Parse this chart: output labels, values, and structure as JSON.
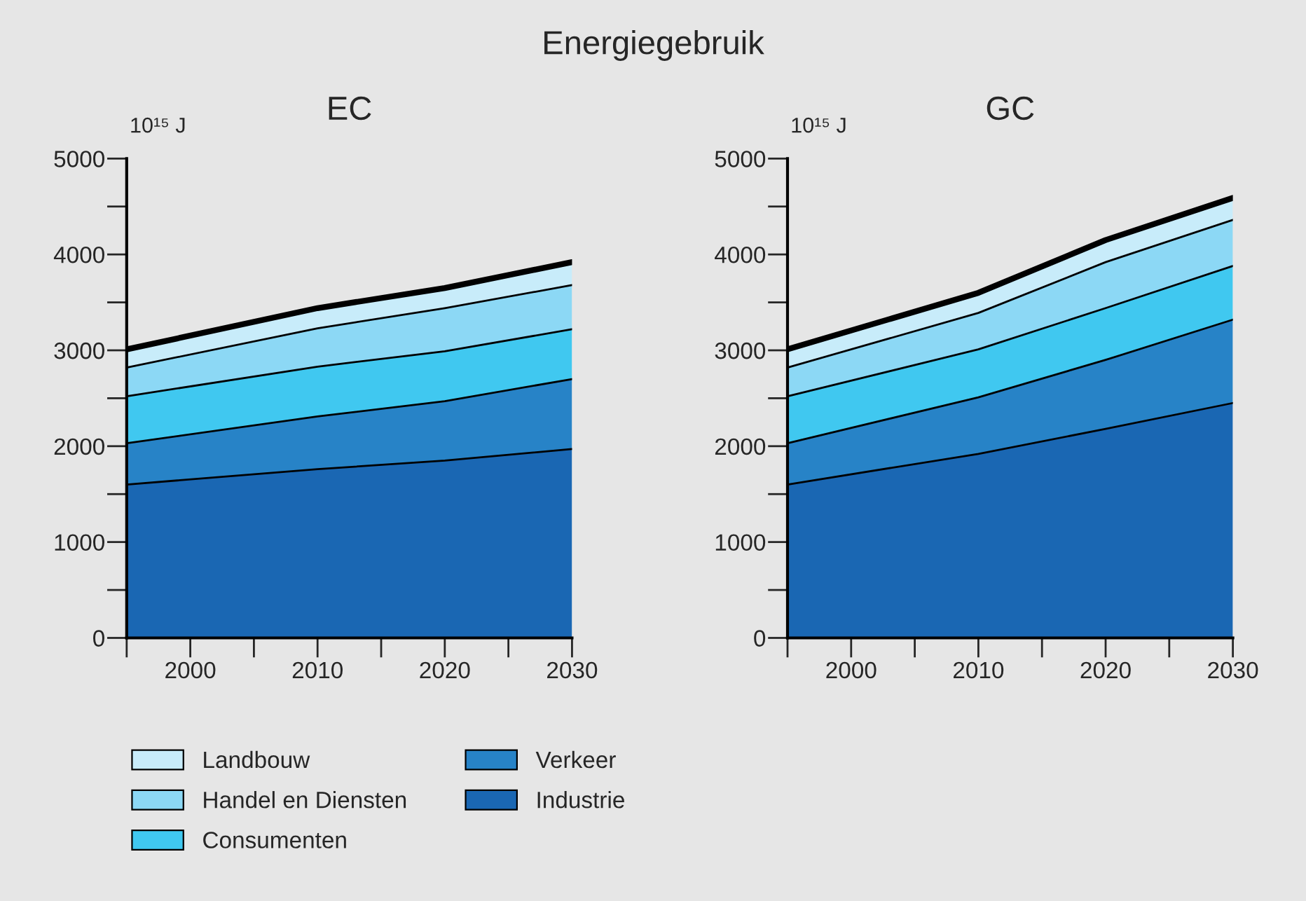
{
  "chart_data": [
    {
      "type": "area",
      "title": "Energiegebruik",
      "subtitle": "EC",
      "ylabel": "10¹⁵ J",
      "stacked": true,
      "legend": "bottom",
      "grid": false,
      "x": [
        1995,
        2010,
        2020,
        2030
      ],
      "xlim": [
        1995,
        2030
      ],
      "xticks": [
        {
          "value": 1995,
          "label": null
        },
        2000,
        {
          "value": 2005,
          "label": null
        },
        2010,
        {
          "value": 2015,
          "label": null
        },
        2020,
        {
          "value": 2025,
          "label": null
        },
        2030
      ],
      "ylim": [
        0,
        5000
      ],
      "yticks": [
        0,
        {
          "value": 500,
          "label": null
        },
        1000,
        {
          "value": 1500,
          "label": null
        },
        2000,
        {
          "value": 2500,
          "label": null
        },
        3000,
        {
          "value": 3500,
          "label": null
        },
        4000,
        {
          "value": 4500,
          "label": null
        },
        5000
      ],
      "series": [
        {
          "name": "Industrie",
          "color": "#1a67b3",
          "values": [
            1600,
            1760,
            1850,
            1970
          ]
        },
        {
          "name": "Verkeer",
          "color": "#2783c7",
          "values": [
            430,
            550,
            620,
            730
          ]
        },
        {
          "name": "Consumenten",
          "color": "#40c8f0",
          "values": [
            490,
            520,
            520,
            520
          ]
        },
        {
          "name": "Handel en Diensten",
          "color": "#8cd8f5",
          "values": [
            300,
            400,
            450,
            460
          ]
        },
        {
          "name": "Landbouw",
          "color": "#c8ecfa",
          "values": [
            190,
            210,
            210,
            240
          ]
        }
      ]
    },
    {
      "type": "area",
      "subtitle": "GC",
      "ylabel": "10¹⁵ J",
      "stacked": true,
      "legend": false,
      "grid": false,
      "x": [
        1995,
        2010,
        2020,
        2030
      ],
      "xlim": [
        1995,
        2030
      ],
      "xticks": [
        {
          "value": 1995,
          "label": null
        },
        2000,
        {
          "value": 2005,
          "label": null
        },
        2010,
        {
          "value": 2015,
          "label": null
        },
        2020,
        {
          "value": 2025,
          "label": null
        },
        2030
      ],
      "ylim": [
        0,
        5000
      ],
      "yticks": [
        0,
        {
          "value": 500,
          "label": null
        },
        1000,
        {
          "value": 1500,
          "label": null
        },
        2000,
        {
          "value": 2500,
          "label": null
        },
        3000,
        {
          "value": 3500,
          "label": null
        },
        4000,
        {
          "value": 4500,
          "label": null
        },
        5000
      ],
      "series": [
        {
          "color": "#1a67b3",
          "values": [
            1600,
            1920,
            2180,
            2450
          ]
        },
        {
          "color": "#2783c7",
          "values": [
            430,
            590,
            720,
            870
          ]
        },
        {
          "color": "#40c8f0",
          "values": [
            490,
            500,
            540,
            560
          ]
        },
        {
          "color": "#8cd8f5",
          "values": [
            300,
            380,
            480,
            480
          ]
        },
        {
          "color": "#c8ecfa",
          "values": [
            190,
            210,
            230,
            230
          ]
        }
      ]
    }
  ]
}
